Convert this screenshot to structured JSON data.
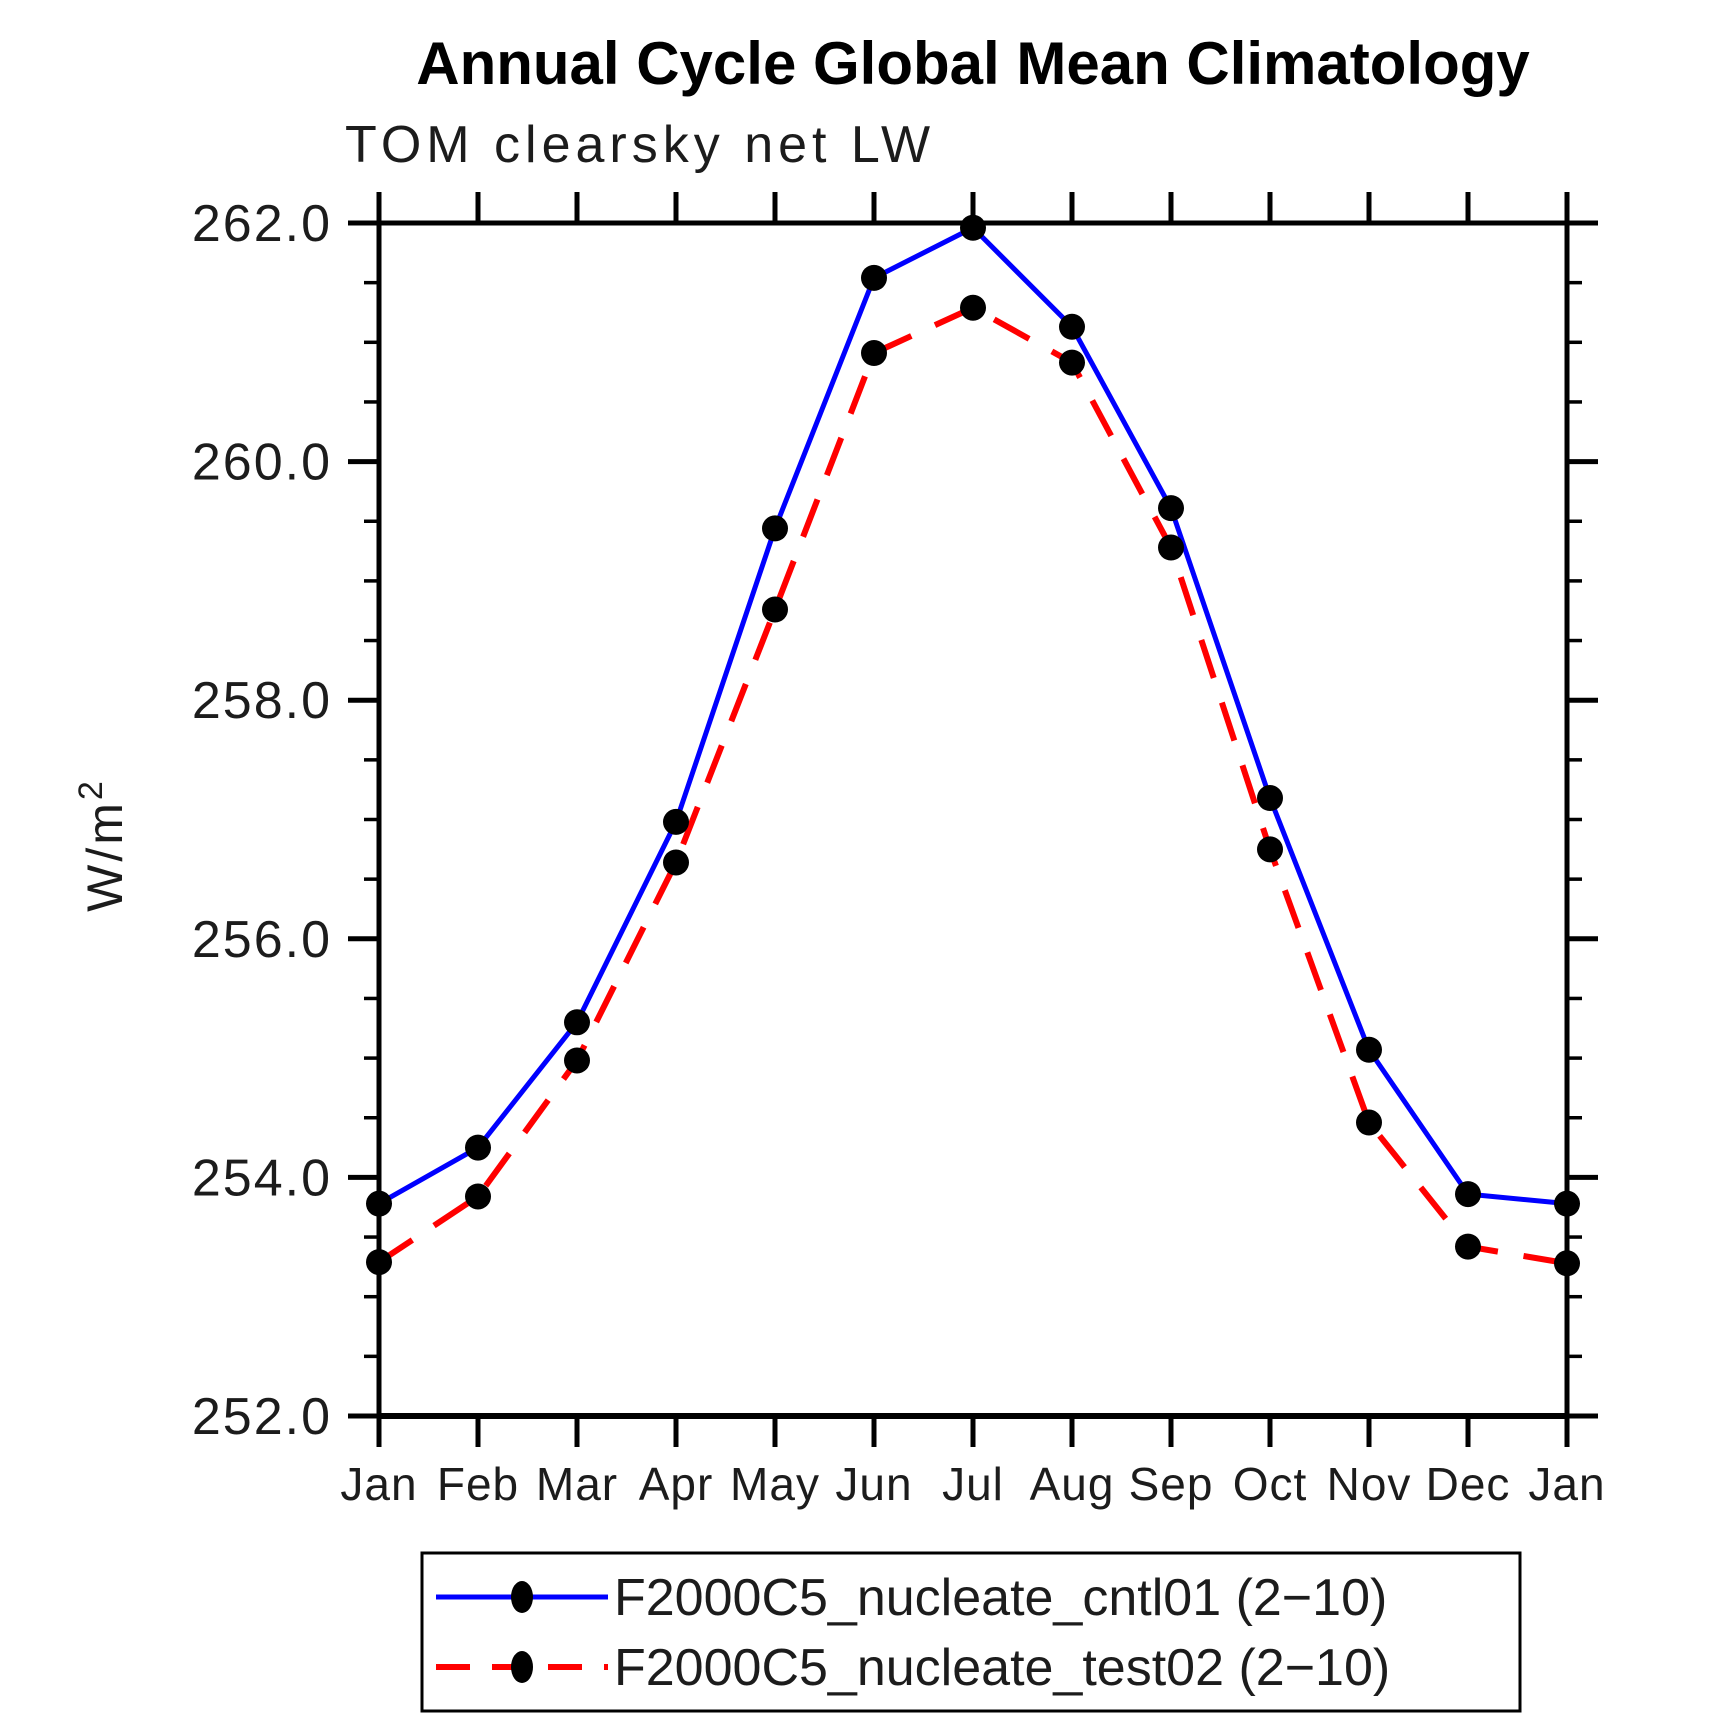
{
  "page": {
    "background": "#FFFFFF"
  },
  "chart": {
    "title": "Annual Cycle Global Mean Climatology",
    "subtitle": "TOM clearsky net LW",
    "ylabel_base": "W/m",
    "ylabel_exponent": "2"
  },
  "chart_data": {
    "type": "line",
    "title": "Annual Cycle Global Mean Climatology",
    "subtitle": "TOM clearsky net LW",
    "xlabel": "",
    "ylabel": "W/m^2",
    "categories": [
      "Jan",
      "Feb",
      "Mar",
      "Apr",
      "May",
      "Jun",
      "Jul",
      "Aug",
      "Sep",
      "Oct",
      "Nov",
      "Dec",
      "Jan"
    ],
    "ylim": [
      252.0,
      262.0
    ],
    "y_major_ticks": [
      252.0,
      254.0,
      256.0,
      258.0,
      260.0,
      262.0
    ],
    "y_tick_labels": [
      "252.0",
      "254.0",
      "256.0",
      "258.0",
      "260.0",
      "262.0"
    ],
    "y_minor_step": 0.5,
    "grid": false,
    "legend_position": "bottom",
    "axis_color": "#000000",
    "marker_color": "#000000",
    "series": [
      {
        "name": "F2000C5_nucleate_cntl01 (2−10)",
        "color": "#0000FF",
        "style": "solid",
        "marker": "filled-black-dot",
        "values": [
          253.78,
          254.25,
          255.3,
          256.98,
          259.44,
          261.54,
          261.96,
          261.13,
          259.61,
          257.18,
          255.07,
          253.86,
          253.78
        ]
      },
      {
        "name": "F2000C5_nucleate_test02 (2−10)",
        "color": "#FF0000",
        "style": "dashed",
        "marker": "filled-black-dot",
        "values": [
          253.29,
          253.84,
          254.98,
          256.64,
          258.76,
          260.91,
          261.29,
          260.83,
          259.28,
          256.75,
          254.46,
          253.42,
          253.28
        ]
      }
    ]
  }
}
